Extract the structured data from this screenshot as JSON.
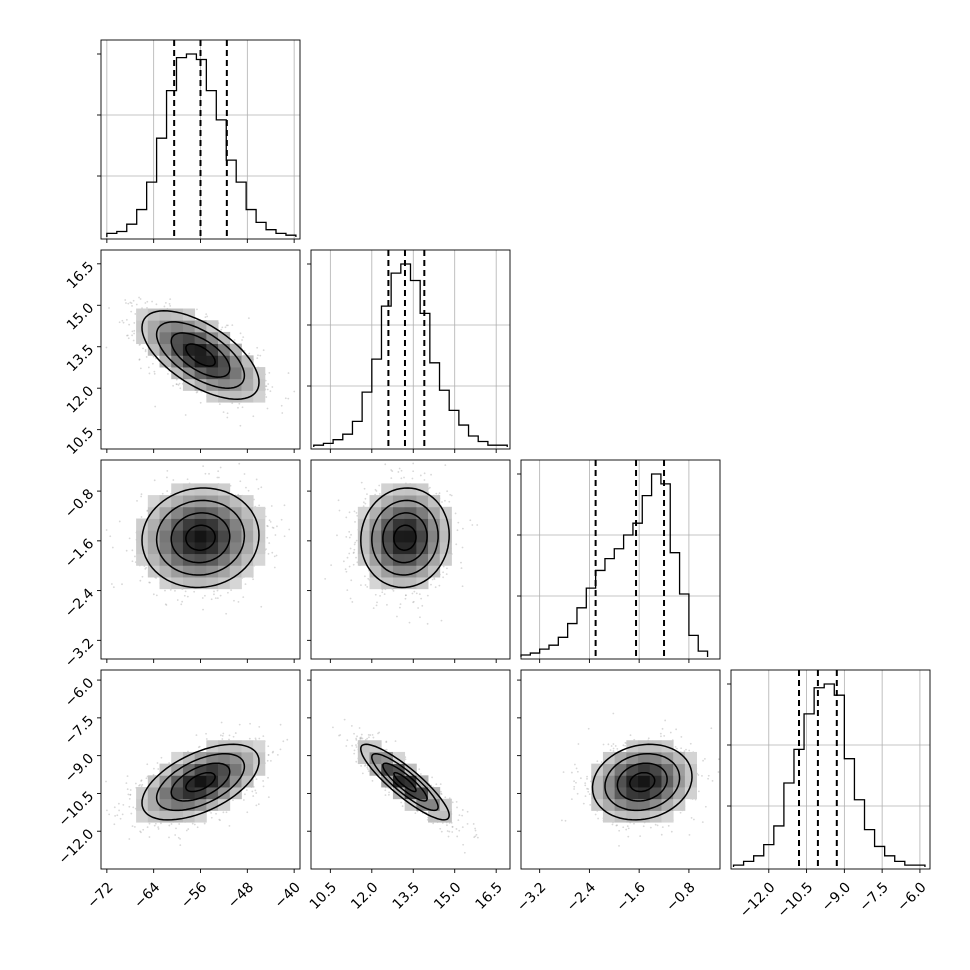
{
  "chart_data": {
    "type": "corner",
    "parameters": [
      {
        "lim": [
          -73,
          -39
        ],
        "ticks": [
          -72,
          -64,
          -56,
          -48,
          -40
        ],
        "tick_labels": [
          "−72",
          "−64",
          "−56",
          "−48",
          "−40"
        ],
        "quantiles": [
          -60.5,
          -56,
          -51.5
        ],
        "center": -56,
        "sigma": 5
      },
      {
        "lim": [
          9.8,
          17.0
        ],
        "ticks": [
          10.5,
          12.0,
          13.5,
          15.0,
          16.5
        ],
        "tick_labels": [
          "10.5",
          "12.0",
          "13.5",
          "15.0",
          "16.5"
        ],
        "quantiles": [
          12.6,
          13.2,
          13.9
        ],
        "center": 13.2,
        "sigma": 0.8
      },
      {
        "lim": [
          -3.5,
          -0.3
        ],
        "ticks": [
          -3.2,
          -2.4,
          -1.6,
          -0.8
        ],
        "tick_labels": [
          "−3.2",
          "−2.4",
          "−1.6",
          "−0.8"
        ],
        "quantiles": [
          -2.3,
          -1.65,
          -1.2
        ],
        "center": -1.55,
        "sigma": 0.4
      },
      {
        "lim": [
          -13.5,
          -5.6
        ],
        "ticks": [
          -12.0,
          -10.5,
          -9.0,
          -7.5,
          -6.0
        ],
        "tick_labels": [
          "−12.0",
          "−10.5",
          "−9.0",
          "−7.5",
          "−6.0"
        ],
        "quantiles": [
          -10.8,
          -10.05,
          -9.3
        ],
        "center": -10.05,
        "sigma": 0.75
      }
    ],
    "histograms": [
      {
        "edges": [
          -72,
          -70.3,
          -68.6,
          -66.9,
          -65.2,
          -63.5,
          -61.8,
          -60.1,
          -58.4,
          -56.7,
          -55,
          -53.3,
          -51.6,
          -49.9,
          -48.2,
          -46.5,
          -44.8,
          -43.1,
          -41.4,
          -39.7
        ],
        "counts": [
          2,
          3,
          7,
          15,
          30,
          54,
          80,
          98,
          100,
          97,
          80,
          64,
          42,
          30,
          15,
          8,
          4,
          2,
          1
        ]
      },
      {
        "edges": [
          9.9,
          10.25,
          10.6,
          10.95,
          11.3,
          11.65,
          12.0,
          12.35,
          12.7,
          13.05,
          13.4,
          13.75,
          14.1,
          14.45,
          14.8,
          15.15,
          15.5,
          15.85,
          16.2,
          16.55,
          16.9
        ],
        "counts": [
          1,
          2,
          4,
          7,
          14,
          30,
          48,
          77,
          95,
          100,
          91,
          73,
          46,
          31,
          20,
          12,
          6,
          3,
          1,
          1
        ]
      },
      {
        "edges": [
          -3.5,
          -3.35,
          -3.2,
          -3.05,
          -2.9,
          -2.75,
          -2.6,
          -2.45,
          -2.3,
          -2.15,
          -2.0,
          -1.85,
          -1.7,
          -1.55,
          -1.4,
          -1.25,
          -1.1,
          -0.95,
          -0.8,
          -0.65,
          -0.5
        ],
        "counts": [
          1,
          2,
          4,
          6,
          10,
          17,
          25,
          35,
          44,
          50,
          55,
          62,
          68,
          82,
          93,
          88,
          53,
          32,
          11,
          3
        ]
      },
      {
        "edges": [
          -13.4,
          -13.0,
          -12.6,
          -12.2,
          -11.8,
          -11.4,
          -11.0,
          -10.6,
          -10.2,
          -9.8,
          -9.4,
          -9.0,
          -8.6,
          -8.2,
          -7.8,
          -7.4,
          -7.0,
          -6.6,
          -6.2,
          -5.8
        ],
        "counts": [
          1,
          3,
          6,
          12,
          22,
          45,
          63,
          82,
          96,
          98,
          92,
          58,
          36,
          20,
          11,
          6,
          3,
          1,
          1
        ]
      }
    ],
    "correlations": [
      {
        "x": 0,
        "y": 1,
        "rho": -0.62
      },
      {
        "x": 0,
        "y": 2,
        "rho": 0.05
      },
      {
        "x": 1,
        "y": 2,
        "rho": 0.05
      },
      {
        "x": 0,
        "y": 3,
        "rho": 0.55
      },
      {
        "x": 1,
        "y": 3,
        "rho": -0.88
      },
      {
        "x": 2,
        "y": 3,
        "rho": 0.15
      }
    ],
    "grid": true,
    "colors": {
      "lines": "#000000",
      "grid": "#b0b0b0",
      "points": "#9a9a9a"
    }
  }
}
